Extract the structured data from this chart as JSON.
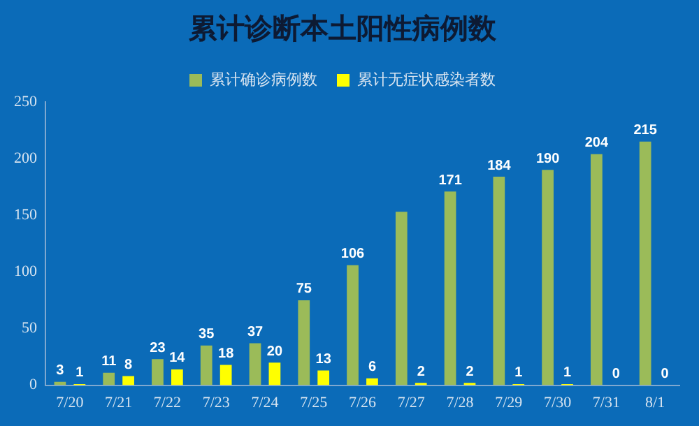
{
  "chart_data": {
    "type": "bar",
    "title": "累计诊断本土阳性病例数",
    "categories": [
      "7/20",
      "7/21",
      "7/22",
      "7/23",
      "7/24",
      "7/25",
      "7/26",
      "7/27",
      "7/28",
      "7/29",
      "7/30",
      "7/31",
      "8/1"
    ],
    "series": [
      {
        "name": "累计确诊病例数",
        "color": "#9bbb59",
        "values": [
          3,
          11,
          23,
          35,
          37,
          75,
          106,
          153,
          171,
          184,
          190,
          204,
          215
        ],
        "value_labels": [
          "3",
          "11",
          "23",
          "35",
          "37",
          "75",
          "106",
          null,
          "171",
          "184",
          "190",
          "204",
          "215"
        ]
      },
      {
        "name": "累计无症状感染者数",
        "color": "#ffff00",
        "values": [
          1,
          8,
          14,
          18,
          20,
          13,
          6,
          2,
          2,
          1,
          1,
          0,
          0
        ],
        "value_labels": [
          "1",
          "8",
          "14",
          "18",
          "20",
          "13",
          "6",
          "2",
          "2",
          "1",
          "1",
          "0",
          "0"
        ]
      }
    ],
    "ylim": [
      0,
      250
    ],
    "yticks": [
      0,
      50,
      100,
      150,
      200,
      250
    ],
    "grid": false,
    "legend": "top"
  }
}
